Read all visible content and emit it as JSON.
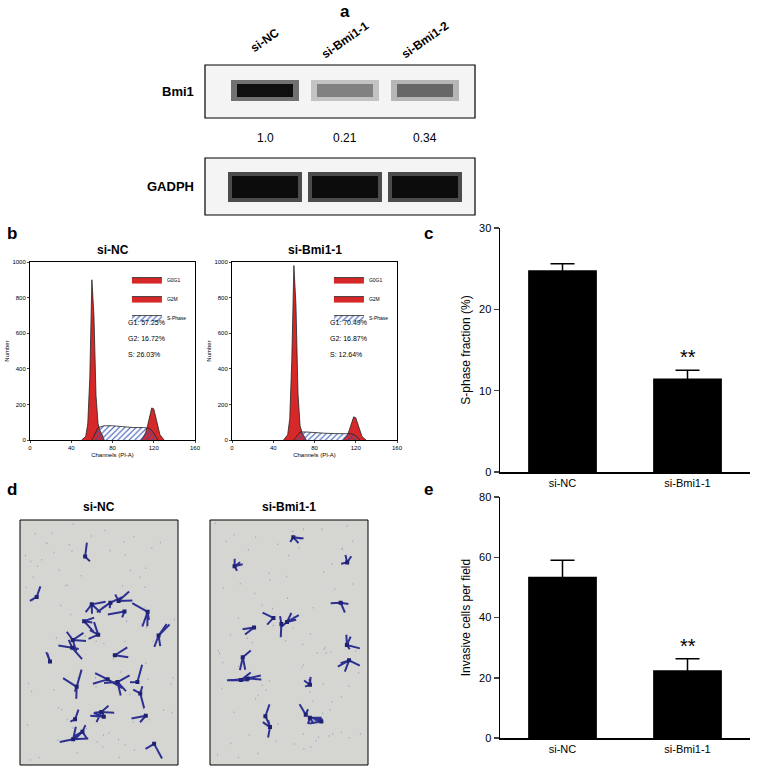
{
  "panel_labels": [
    "a",
    "b",
    "c",
    "d",
    "e"
  ],
  "blot": {
    "lanes": [
      "si-NC",
      "si-Bmi1-1",
      "si-Bmi1-2"
    ],
    "rows": [
      "Bmi1",
      "GADPH"
    ],
    "quantification": [
      1.0,
      0.21,
      0.34
    ],
    "quantification_labels": [
      "1.0",
      "0.21",
      "0.34"
    ]
  },
  "images": {
    "titles": [
      "si-NC",
      "si-Bmi1-1"
    ]
  },
  "chart_data": [
    {
      "type": "area",
      "title": "si-NC",
      "x_label": "Channels (PI-A)",
      "y_label": "Number",
      "xlim": [
        0,
        160
      ],
      "xticks": [
        0,
        40,
        80,
        120,
        160
      ],
      "ylim": [
        0,
        1000
      ],
      "yticks": [
        0,
        200,
        400,
        600,
        800,
        1000
      ],
      "legend": "upper right",
      "annotations": [
        "G1: 57.25%",
        "G2: 16.72%",
        "S: 26.03%"
      ],
      "series": [
        {
          "name": "G0G1",
          "color": "#d62828",
          "x": [
            50,
            54,
            56,
            58,
            60,
            62,
            64,
            66,
            68,
            70,
            72
          ],
          "values": [
            0,
            20,
            90,
            350,
            900,
            700,
            250,
            90,
            50,
            30,
            0
          ]
        },
        {
          "name": "G2M",
          "color": "#d62828",
          "x": [
            108,
            112,
            114,
            116,
            118,
            120,
            122,
            124,
            126,
            130
          ],
          "values": [
            0,
            40,
            80,
            140,
            180,
            175,
            130,
            70,
            30,
            0
          ]
        },
        {
          "name": "S-Phase",
          "color": "#2f4fb0",
          "marker": "hatch",
          "x": [
            60,
            66,
            72,
            80,
            90,
            100,
            110,
            116,
            120,
            124
          ],
          "values": [
            0,
            70,
            80,
            80,
            75,
            70,
            70,
            65,
            40,
            0
          ]
        }
      ]
    },
    {
      "type": "area",
      "title": "si-Bmi1-1",
      "x_label": "Channels (PI-A)",
      "y_label": "Number",
      "xlim": [
        0,
        160
      ],
      "xticks": [
        0,
        40,
        80,
        120,
        160
      ],
      "ylim": [
        0,
        1000
      ],
      "yticks": [
        0,
        200,
        400,
        600,
        800,
        1000
      ],
      "legend": "upper right",
      "annotations": [
        "G1: 70.49%",
        "G2: 16.87%",
        "S: 12.64%"
      ],
      "series": [
        {
          "name": "G0G1",
          "color": "#d62828",
          "x": [
            50,
            54,
            56,
            58,
            60,
            62,
            64,
            66,
            68,
            70,
            72
          ],
          "values": [
            0,
            30,
            120,
            450,
            980,
            760,
            260,
            80,
            40,
            20,
            0
          ]
        },
        {
          "name": "G2M",
          "color": "#d62828",
          "x": [
            108,
            112,
            114,
            116,
            118,
            120,
            122,
            124,
            126,
            130
          ],
          "values": [
            0,
            30,
            60,
            100,
            130,
            125,
            90,
            50,
            20,
            0
          ]
        },
        {
          "name": "S-Phase",
          "color": "#2f4fb0",
          "marker": "hatch",
          "x": [
            60,
            66,
            72,
            80,
            90,
            100,
            110,
            116,
            120,
            124
          ],
          "values": [
            0,
            45,
            45,
            40,
            38,
            36,
            35,
            35,
            25,
            0
          ]
        }
      ]
    },
    {
      "type": "bar",
      "y_label": "S-phase fraction (%)",
      "categories": [
        "si-NC",
        "si-Bmi1-1"
      ],
      "values": [
        24.8,
        11.5
      ],
      "errors": [
        0.8,
        1.0
      ],
      "color": "#000000",
      "ylim": [
        0,
        30
      ],
      "yticks": [
        0,
        10,
        20,
        30
      ],
      "annotations": [
        {
          "text": "**",
          "category": "si-Bmi1-1"
        }
      ]
    },
    {
      "type": "bar",
      "y_label": "Invasive cells per field",
      "categories": [
        "si-NC",
        "si-Bmi1-1"
      ],
      "values": [
        53.5,
        22.5
      ],
      "errors": [
        5.5,
        3.8
      ],
      "color": "#000000",
      "ylim": [
        0,
        80
      ],
      "yticks": [
        0,
        20,
        40,
        60,
        80
      ],
      "annotations": [
        {
          "text": "**",
          "category": "si-Bmi1-1"
        }
      ]
    }
  ]
}
